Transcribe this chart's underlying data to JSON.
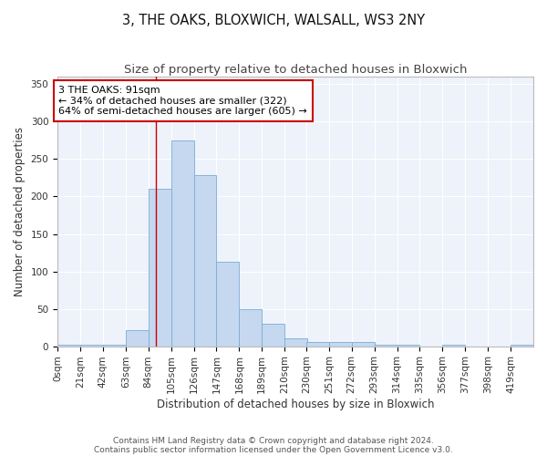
{
  "title": "3, THE OAKS, BLOXWICH, WALSALL, WS3 2NY",
  "subtitle": "Size of property relative to detached houses in Bloxwich",
  "xlabel": "Distribution of detached houses by size in Bloxwich",
  "ylabel": "Number of detached properties",
  "bar_color": "#c5d8f0",
  "bar_edge_color": "#7aadd4",
  "background_color": "#eef2fa",
  "grid_color": "#ffffff",
  "property_line_x": 91,
  "annotation_text": "3 THE OAKS: 91sqm\n← 34% of detached houses are smaller (322)\n64% of semi-detached houses are larger (605) →",
  "annotation_box_color": "#cc0000",
  "categories": [
    "0sqm",
    "21sqm",
    "42sqm",
    "63sqm",
    "84sqm",
    "105sqm",
    "126sqm",
    "147sqm",
    "168sqm",
    "189sqm",
    "210sqm",
    "230sqm",
    "251sqm",
    "272sqm",
    "293sqm",
    "314sqm",
    "335sqm",
    "356sqm",
    "377sqm",
    "398sqm",
    "419sqm"
  ],
  "bin_edges": [
    0,
    21,
    42,
    63,
    84,
    105,
    126,
    147,
    168,
    189,
    210,
    230,
    251,
    272,
    293,
    314,
    335,
    356,
    377,
    398,
    419,
    440
  ],
  "values": [
    2,
    2,
    2,
    22,
    210,
    275,
    228,
    113,
    50,
    30,
    10,
    5,
    5,
    5,
    2,
    2,
    0,
    2,
    0,
    0,
    2
  ],
  "ylim": [
    0,
    360
  ],
  "yticks": [
    0,
    50,
    100,
    150,
    200,
    250,
    300,
    350
  ],
  "footnote1": "Contains HM Land Registry data © Crown copyright and database right 2024.",
  "footnote2": "Contains public sector information licensed under the Open Government Licence v3.0.",
  "title_fontsize": 10.5,
  "subtitle_fontsize": 9.5,
  "xlabel_fontsize": 8.5,
  "ylabel_fontsize": 8.5,
  "tick_fontsize": 7.5,
  "annotation_fontsize": 8,
  "footnote_fontsize": 6.5
}
